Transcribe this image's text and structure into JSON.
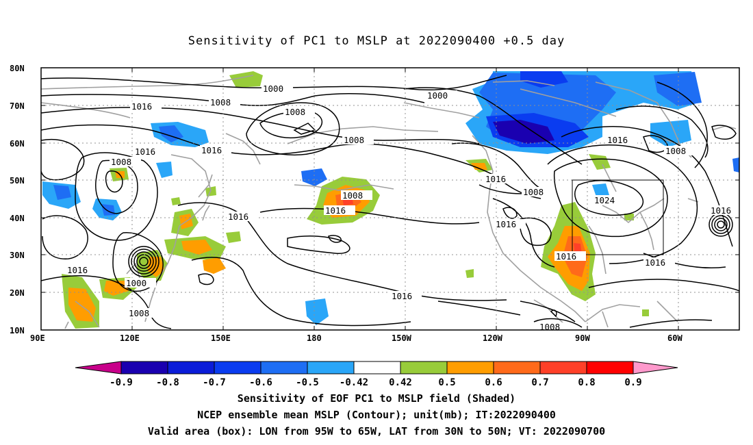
{
  "title": "Sensitivity of PC1 to MSLP at 2022090400 +0.5 day",
  "lat_labels": [
    "80N",
    "70N",
    "60N",
    "50N",
    "40N",
    "30N",
    "20N",
    "10N"
  ],
  "lon_labels": [
    "90E",
    "120E",
    "150E",
    "180",
    "150W",
    "120W",
    "90W",
    "60W"
  ],
  "contour_labels": [
    "1000",
    "1008",
    "1016",
    "1016",
    "1016",
    "1008",
    "1008",
    "1000",
    "1016",
    "1008",
    "1008",
    "1016",
    "1016",
    "1024",
    "1016",
    "1016",
    "1016",
    "1016",
    "1016",
    "1016",
    "1008",
    "1000",
    "1008"
  ],
  "colorbar": {
    "labels": [
      "-0.9",
      "-0.8",
      "-0.7",
      "-0.6",
      "-0.5",
      "-0.42",
      "0.42",
      "0.5",
      "0.6",
      "0.7",
      "0.8",
      "0.9"
    ],
    "colors": [
      "#1a00b0",
      "#0a1cd8",
      "#0a3cf0",
      "#1e6ef4",
      "#2aa6f8",
      "#ffffff",
      "#98cc3a",
      "#ff9d00",
      "#ff6a1a",
      "#ff4028",
      "#ff0000"
    ],
    "end_low_color": "#c8008a",
    "end_high_color": "#ff99cc"
  },
  "captions": [
    "Sensitivity of EOF PC1 to MSLP field (Shaded)",
    "NCEP ensemble mean MSLP (Contour); unit(mb); IT:2022090400",
    "Valid area (box): LON from 95W to 65W, LAT from 30N to 50N; VT: 2022090700"
  ]
}
